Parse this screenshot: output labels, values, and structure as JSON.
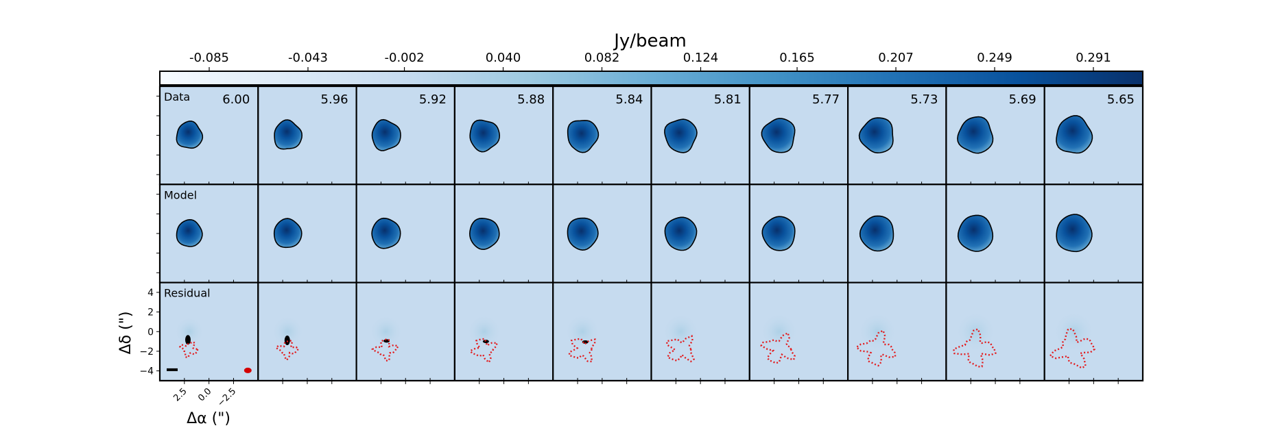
{
  "chart_data": {
    "type": "heatmap",
    "title": "Jy/beam",
    "colorbar": {
      "label": "Jy/beam",
      "tick_labels": [
        "-0.085",
        "-0.043",
        "-0.002",
        "0.040",
        "0.082",
        "0.124",
        "0.165",
        "0.207",
        "0.249",
        "0.291"
      ],
      "range": [
        -0.106,
        0.312
      ],
      "colormap": "Blues",
      "placement": "top"
    },
    "rows": [
      {
        "label": "Data"
      },
      {
        "label": "Model"
      },
      {
        "label": "Residual"
      }
    ],
    "channels": [
      "6.00",
      "5.96",
      "5.92",
      "5.88",
      "5.84",
      "5.81",
      "5.77",
      "5.73",
      "5.69",
      "5.65"
    ],
    "xlabel": "Δα (\")",
    "ylabel": "Δδ (\")",
    "x_tick_labels": [
      "2.5",
      "0.0",
      "−2.5"
    ],
    "x_ticks": [
      2.5,
      0.0,
      -2.5
    ],
    "y_tick_labels": [
      "4",
      "2",
      "0",
      "−2",
      "−4"
    ],
    "y_ticks": [
      4,
      2,
      0,
      -2,
      -4
    ],
    "extent": {
      "x": [
        5.0,
        -5.0
      ],
      "y": [
        -5.0,
        5.0
      ]
    },
    "source_center": [
      2.0,
      0.0
    ],
    "source_radius": [
      1.3,
      1.4,
      1.45,
      1.5,
      1.55,
      1.6,
      1.65,
      1.7,
      1.75,
      1.8
    ],
    "residual_negative_center": [
      2.0,
      -1.8
    ],
    "residual_positive_contour": {
      "present_in_channels": [
        0,
        1,
        2,
        3,
        4
      ]
    },
    "beam": {
      "color": "#d40000",
      "location": "bottom-right"
    },
    "scale_bar": {
      "location": "bottom-left"
    },
    "colors": {
      "background": "#c6dbef",
      "source_core": "#08519c",
      "source_mid": "#2171b5",
      "contour": "#000000",
      "residual_negative": "#e31a1c"
    }
  }
}
